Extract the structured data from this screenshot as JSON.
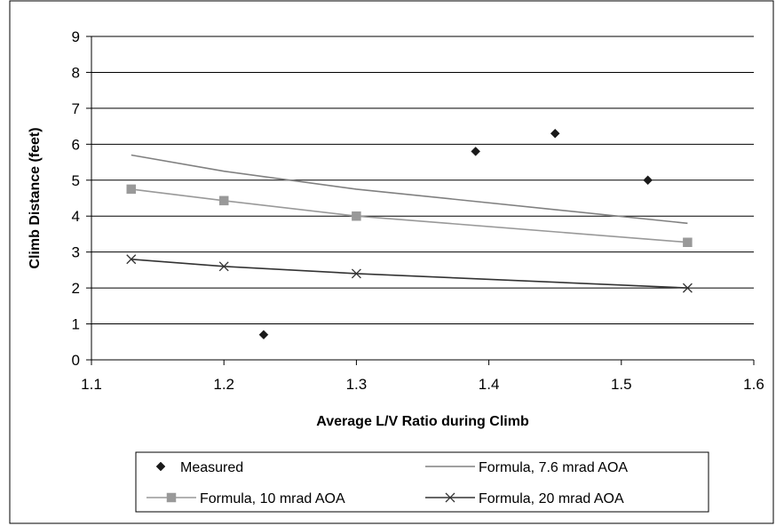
{
  "chart_data": {
    "type": "scatter",
    "title": "",
    "xlabel": "Average L/V Ratio during Climb",
    "ylabel": "Climb Distance (feet)",
    "xlim": [
      1.1,
      1.6
    ],
    "ylim": [
      0,
      9
    ],
    "xticks": [
      1.1,
      1.2,
      1.3,
      1.4,
      1.5,
      1.6
    ],
    "yticks": [
      0,
      1,
      2,
      3,
      4,
      5,
      6,
      7,
      8,
      9
    ],
    "xtick_labels": [
      "1.1",
      "1.2",
      "1.3",
      "1.4",
      "1.5",
      "1.6"
    ],
    "ytick_labels": [
      "0",
      "1",
      "2",
      "3",
      "4",
      "5",
      "6",
      "7",
      "8",
      "9"
    ],
    "grid": "horizontal",
    "legend_position": "bottom",
    "series": [
      {
        "name": "Measured",
        "style": "markers",
        "marker": "diamond",
        "color": "#1a1a1a",
        "points": [
          [
            1.23,
            0.7
          ],
          [
            1.39,
            5.8
          ],
          [
            1.45,
            6.3
          ],
          [
            1.52,
            5.0
          ]
        ]
      },
      {
        "name": "Formula, 7.6 mrad AOA",
        "style": "line",
        "marker": "none",
        "color": "#808080",
        "points": [
          [
            1.13,
            5.7
          ],
          [
            1.2,
            5.25
          ],
          [
            1.3,
            4.75
          ],
          [
            1.55,
            3.8
          ]
        ]
      },
      {
        "name": "Formula, 10 mrad AOA",
        "style": "line+markers",
        "marker": "square",
        "color": "#999999",
        "points": [
          [
            1.13,
            4.75
          ],
          [
            1.2,
            4.43
          ],
          [
            1.3,
            4.0
          ],
          [
            1.55,
            3.27
          ]
        ]
      },
      {
        "name": "Formula, 20 mrad AOA",
        "style": "line+markers",
        "marker": "x",
        "color": "#333333",
        "points": [
          [
            1.13,
            2.8
          ],
          [
            1.2,
            2.6
          ],
          [
            1.3,
            2.4
          ],
          [
            1.55,
            2.0
          ]
        ]
      }
    ]
  }
}
